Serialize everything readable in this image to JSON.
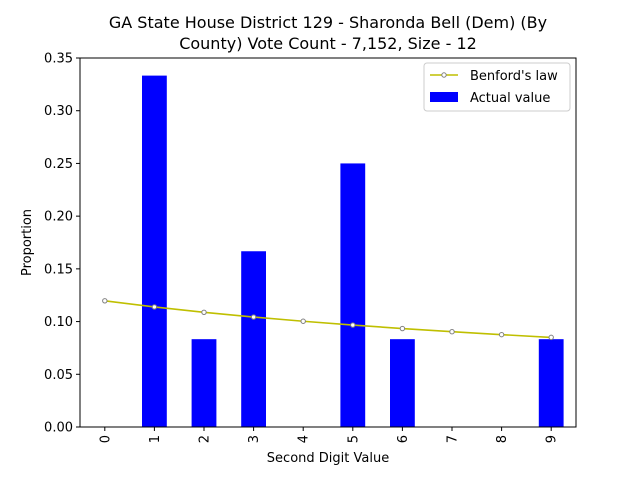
{
  "chart_data": {
    "type": "bar",
    "title_lines": [
      "GA State House District 129 - Sharonda Bell (Dem) (By",
      "County) Vote Count - 7,152, Size - 12"
    ],
    "xlabel": "Second Digit Value",
    "ylabel": "Proportion",
    "categories": [
      "0",
      "1",
      "2",
      "3",
      "4",
      "5",
      "6",
      "7",
      "8",
      "9"
    ],
    "ylim": [
      0,
      0.35
    ],
    "yticks": [
      "0.00",
      "0.05",
      "0.10",
      "0.15",
      "0.20",
      "0.25",
      "0.30",
      "0.35"
    ],
    "legend_position": "top-right",
    "grid": false,
    "series": [
      {
        "name": "Benford's law",
        "type": "line",
        "color": "#bfbf00",
        "marker_color": "#808080",
        "values": [
          0.1197,
          0.1139,
          0.1088,
          0.1043,
          0.1003,
          0.0967,
          0.0934,
          0.0904,
          0.0876,
          0.085
        ]
      },
      {
        "name": "Actual value",
        "type": "bar",
        "color": "#0000ff",
        "values": [
          0.0,
          0.3333,
          0.0833,
          0.1667,
          0.0,
          0.25,
          0.0833,
          0.0,
          0.0,
          0.0833
        ]
      }
    ]
  }
}
